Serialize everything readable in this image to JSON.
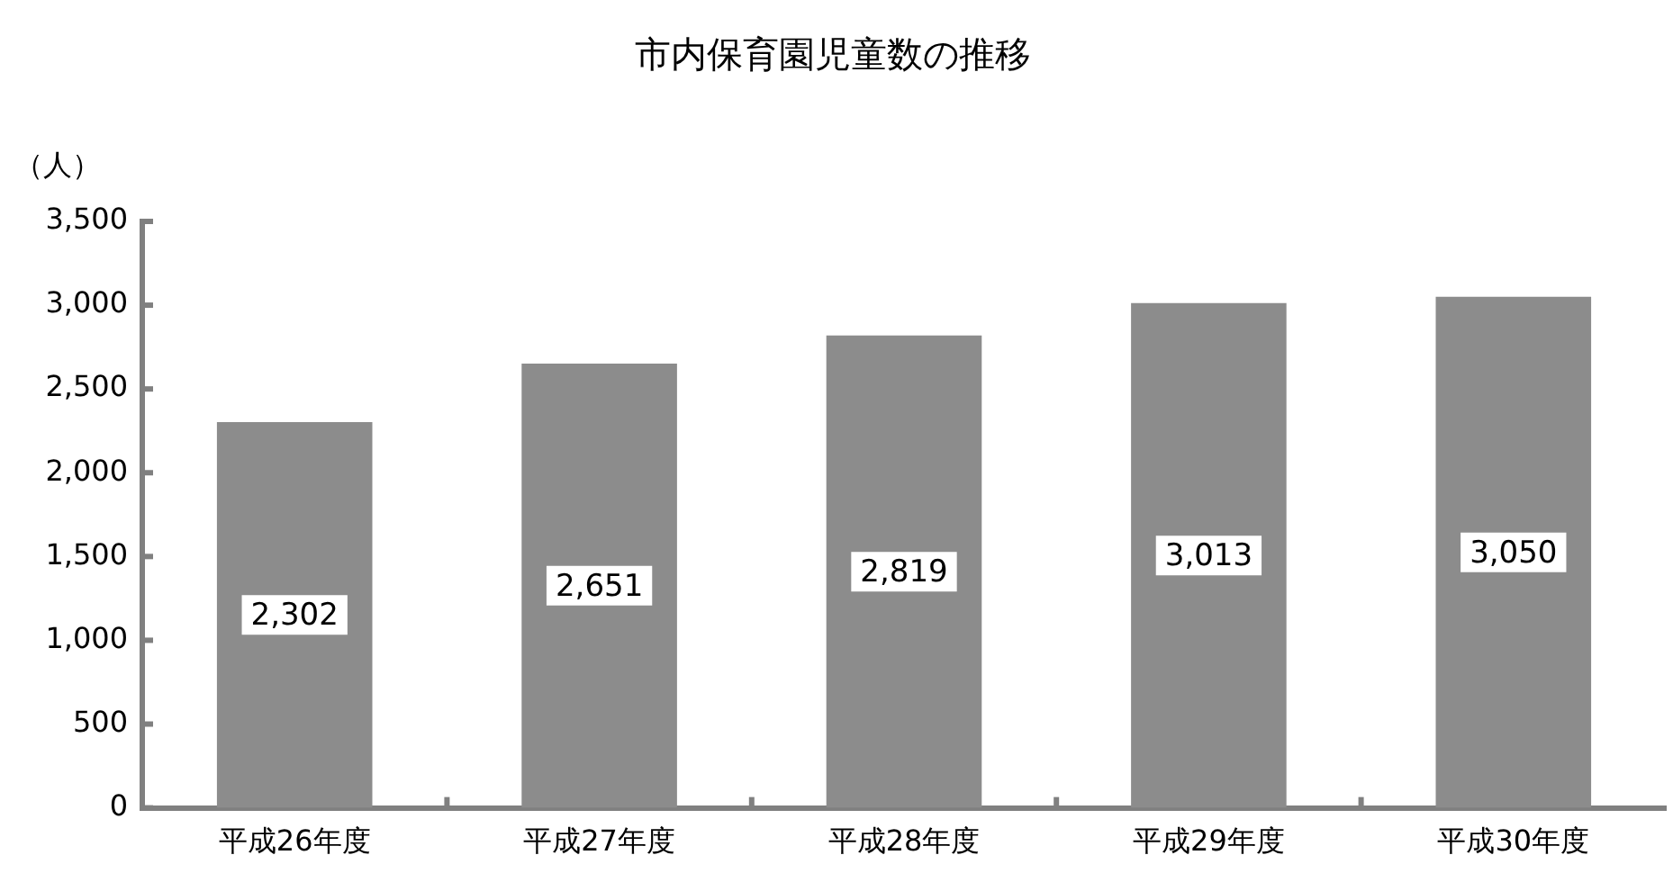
{
  "chart_data": {
    "type": "bar",
    "title": "市内保育園児童数の推移",
    "ylabel": "（人）",
    "categories": [
      "平成26年度",
      "平成27年度",
      "平成28年度",
      "平成29年度",
      "平成30年度"
    ],
    "values": [
      2302,
      2651,
      2819,
      3013,
      3050
    ],
    "value_labels": [
      "2,302",
      "2,651",
      "2,819",
      "3,013",
      "3,050"
    ],
    "color": "#8c8c8c",
    "ylim": [
      0,
      3500
    ],
    "yticks": [
      0,
      500,
      {
        "value": 1000,
        "label": "1,000"
      },
      {
        "value": 1500,
        "label": "1,500"
      },
      {
        "value": 2000,
        "label": "2,000"
      },
      {
        "value": 2500,
        "label": "2,500"
      },
      {
        "value": 3000,
        "label": "3,000"
      },
      {
        "value": 3500,
        "label": "3,500"
      }
    ],
    "grid": false,
    "legend": false
  }
}
